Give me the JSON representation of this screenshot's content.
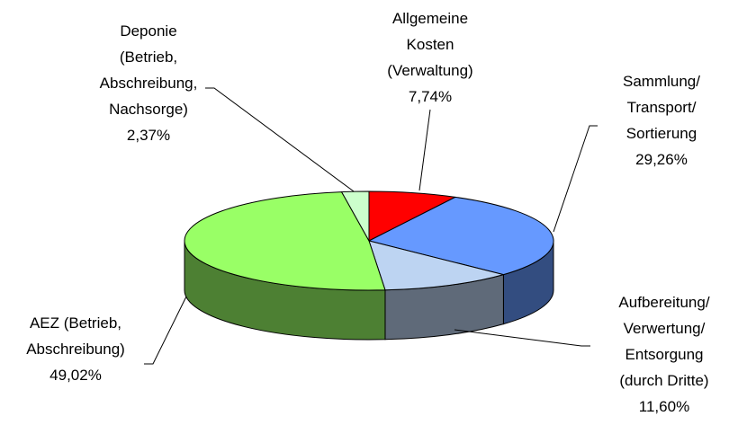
{
  "chart_data": {
    "type": "pie3d",
    "categories": [
      "Allgemeine\nKosten\n(Verwaltung)",
      "Sammlung/\nTransport/\nSortierung",
      "Aufbereitung/\nVerwertung/\nEntsorgung\n(durch Dritte)",
      "AEZ (Betrieb,\nAbschreibung)",
      "Deponie\n(Betrieb,\nAbschreibung,\nNachsorge)"
    ],
    "values": [
      7.74,
      29.26,
      11.6,
      49.02,
      2.37
    ],
    "value_labels": [
      "7,74%",
      "29,26%",
      "11,60%",
      "49,02%",
      "2,37%"
    ],
    "colors": [
      "#ff0000",
      "#6699ff",
      "#bdd4f2",
      "#99ff66",
      "#ccffcc"
    ]
  }
}
